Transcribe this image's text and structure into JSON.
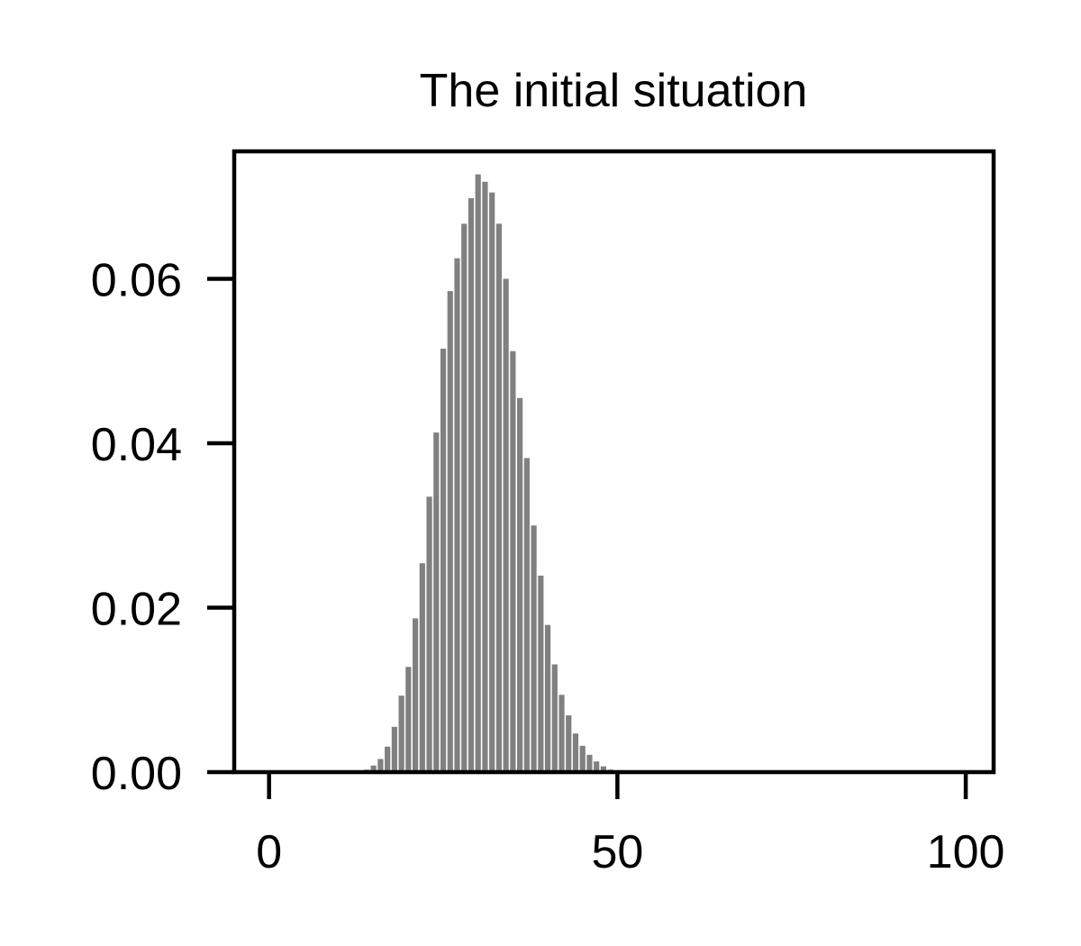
{
  "chart_data": {
    "type": "bar",
    "title": "The initial situation",
    "xlabel": "",
    "ylabel": "",
    "xlim": [
      -5,
      104
    ],
    "ylim": [
      0,
      0.0755
    ],
    "xticks": [
      0,
      50,
      100
    ],
    "xtick_labels": [
      "0",
      "50",
      "100"
    ],
    "yticks": [
      0,
      0.02,
      0.04,
      0.06
    ],
    "ytick_labels": [
      "0.00",
      "0.02",
      "0.04",
      "0.06"
    ],
    "grid": false,
    "bar_color": "#808080",
    "x": [
      14,
      15,
      16,
      17,
      18,
      19,
      20,
      21,
      22,
      23,
      24,
      25,
      26,
      27,
      28,
      29,
      30,
      31,
      32,
      33,
      34,
      35,
      36,
      37,
      38,
      39,
      40,
      41,
      42,
      43,
      44,
      45,
      46,
      47,
      48,
      49
    ],
    "values": [
      0.0003,
      0.0008,
      0.0016,
      0.0031,
      0.0055,
      0.0093,
      0.0128,
      0.0187,
      0.0254,
      0.0335,
      0.0413,
      0.0515,
      0.0585,
      0.0625,
      0.0667,
      0.0698,
      0.0727,
      0.0718,
      0.0705,
      0.0667,
      0.06,
      0.0512,
      0.0455,
      0.0382,
      0.03,
      0.0239,
      0.0179,
      0.0131,
      0.0094,
      0.0069,
      0.0047,
      0.0032,
      0.0021,
      0.0013,
      0.0007,
      0.0003
    ]
  }
}
